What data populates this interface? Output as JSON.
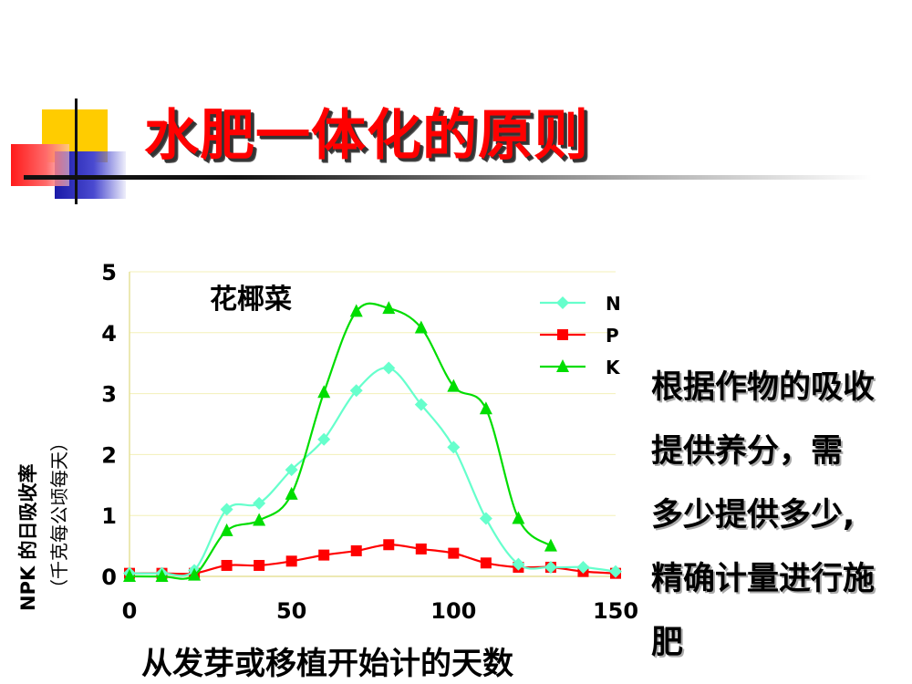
{
  "slide": {
    "title": "水肥一体化的原则",
    "side_text_lines": [
      "根据作物的吸收",
      "提供养分，需",
      "多少提供多少,",
      "精确计量进行施",
      "肥"
    ]
  },
  "colors": {
    "title": "#ff0000",
    "N": "#66ffcc",
    "P": "#ff0000",
    "K": "#00dd00"
  },
  "chart_data": {
    "type": "line",
    "title": "花椰菜",
    "xlabel": "从发芽或移植开始计的天数",
    "ylabel": "NPK 的日吸收率",
    "ylabel_unit": "（千克每公顷每天）",
    "xlim": [
      0,
      150
    ],
    "ylim": [
      0,
      5
    ],
    "xticks": [
      "0",
      "50",
      "100",
      "150"
    ],
    "yticks": [
      "0",
      "1",
      "2",
      "3",
      "4",
      "5"
    ],
    "legend_position": "top-right",
    "series": [
      {
        "name": "N",
        "marker": "diamond",
        "color": "#66ffcc",
        "x": [
          0,
          10,
          20,
          30,
          40,
          50,
          60,
          70,
          80,
          90,
          100,
          110,
          120,
          130,
          140,
          150
        ],
        "y": [
          0.05,
          0.05,
          0.1,
          1.1,
          1.2,
          1.75,
          2.25,
          3.05,
          3.42,
          2.82,
          2.12,
          0.95,
          0.2,
          0.15,
          0.15,
          0.08
        ]
      },
      {
        "name": "P",
        "marker": "square",
        "color": "#ff0000",
        "x": [
          0,
          10,
          20,
          30,
          40,
          50,
          60,
          70,
          80,
          90,
          100,
          110,
          120,
          130,
          140,
          150
        ],
        "y": [
          0.05,
          0.05,
          0.05,
          0.18,
          0.18,
          0.25,
          0.35,
          0.42,
          0.52,
          0.45,
          0.38,
          0.22,
          0.15,
          0.15,
          0.08,
          0.05
        ]
      },
      {
        "name": "K",
        "marker": "triangle",
        "color": "#00dd00",
        "x": [
          0,
          10,
          20,
          30,
          40,
          50,
          60,
          70,
          80,
          90,
          100,
          110,
          120,
          130
        ],
        "y": [
          0.0,
          0.0,
          0.02,
          0.75,
          0.92,
          1.35,
          3.02,
          4.35,
          4.4,
          4.08,
          3.12,
          2.75,
          0.95,
          0.5
        ]
      }
    ]
  }
}
